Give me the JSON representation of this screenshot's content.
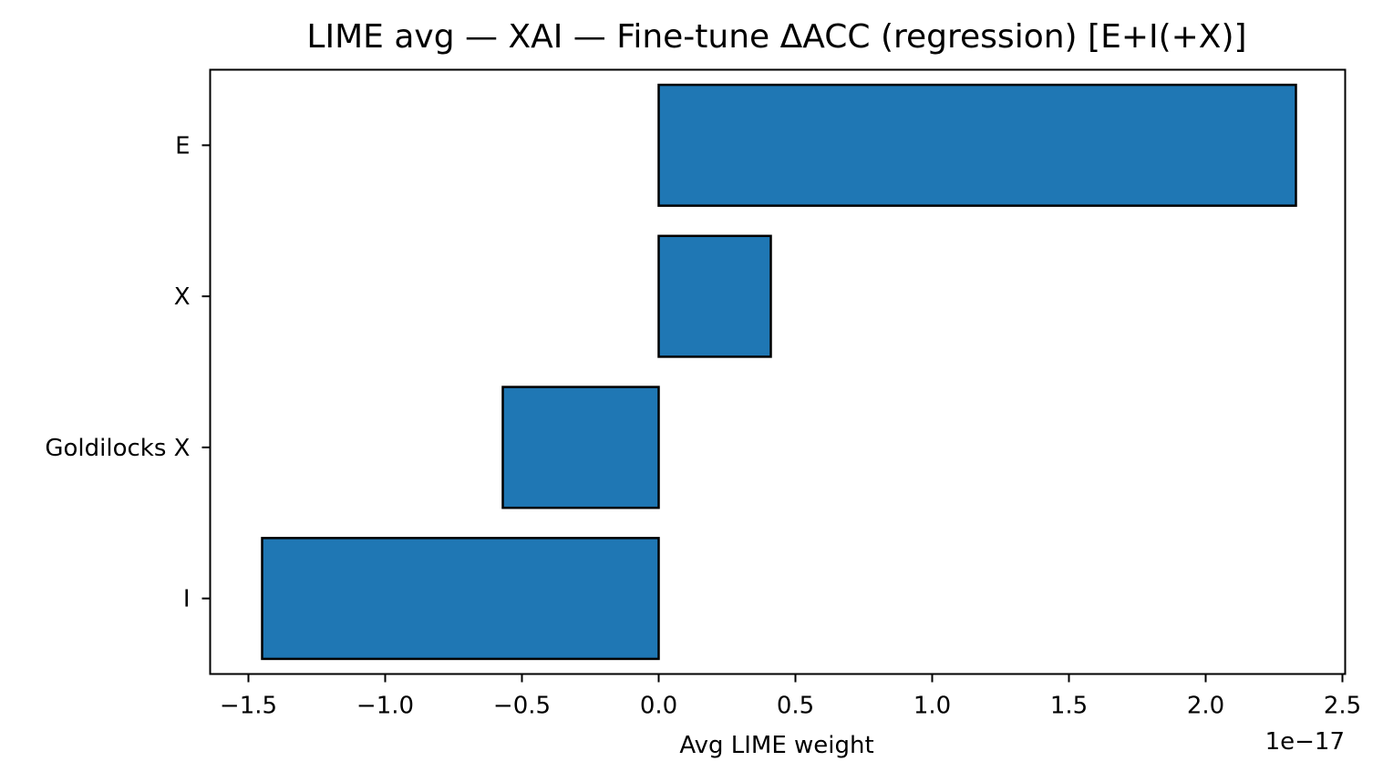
{
  "chart_data": {
    "type": "bar",
    "orientation": "horizontal",
    "title": "LIME avg — XAI — Fine-tune ΔACC (regression) [E+I(+X)]",
    "xlabel": "Avg LIME weight",
    "ylabel": "",
    "x_offset_label": "1e−17",
    "x_scale": 1e-17,
    "categories": [
      "E",
      "X",
      "Goldilocks X",
      "I"
    ],
    "values": [
      2.33,
      0.41,
      -0.57,
      -1.45
    ],
    "xlim": [
      -1.64,
      2.51
    ],
    "xticks": [
      {
        "value": -1.5,
        "label": "−1.5"
      },
      {
        "value": -1.0,
        "label": "−1.0"
      },
      {
        "value": -0.5,
        "label": "−0.5"
      },
      {
        "value": 0.0,
        "label": "0.0"
      },
      {
        "value": 0.5,
        "label": "0.5"
      },
      {
        "value": 1.0,
        "label": "1.0"
      },
      {
        "value": 1.5,
        "label": "1.5"
      },
      {
        "value": 2.0,
        "label": "2.0"
      },
      {
        "value": 2.5,
        "label": "2.5"
      }
    ],
    "grid": false,
    "legend": "none",
    "colors": {
      "bar_fill": "#1f77b4",
      "bar_edge": "#000000",
      "axes": "#000000",
      "background": "#ffffff"
    }
  }
}
